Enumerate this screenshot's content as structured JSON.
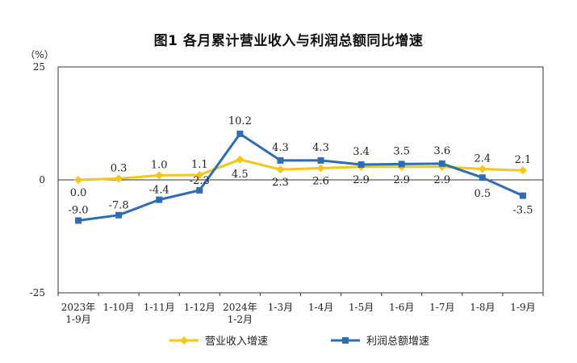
{
  "chart_data": {
    "type": "line",
    "title": "图1  各月累计营业收入与利润总额同比增速",
    "ylabel": "（%）",
    "ylim": [
      -25,
      25
    ],
    "yticks": [
      "25",
      "0",
      "-25"
    ],
    "categories": [
      [
        "2023年",
        "1-9月"
      ],
      [
        "1-10月"
      ],
      [
        "1-11月"
      ],
      [
        "1-12月"
      ],
      [
        "2024年",
        "1-2月"
      ],
      [
        "1-3月"
      ],
      [
        "1-4月"
      ],
      [
        "1-5月"
      ],
      [
        "1-6月"
      ],
      [
        "1-7月"
      ],
      [
        "1-8月"
      ],
      [
        "1-9月"
      ]
    ],
    "series": [
      {
        "name": "营业收入增速",
        "color": "#F5C518",
        "marker": "diamond",
        "values": [
          0.0,
          0.3,
          1.0,
          1.1,
          4.5,
          2.3,
          2.6,
          2.9,
          2.9,
          2.9,
          2.4,
          2.1
        ],
        "labels": [
          "0.0",
          "0.3",
          "1.0",
          "1.1",
          "4.5",
          "2.3",
          "2.6",
          "2.9",
          "2.9",
          "2.9",
          "2.4",
          "2.1"
        ]
      },
      {
        "name": "利润总额增速",
        "color": "#2E6DB4",
        "marker": "square",
        "values": [
          -9.0,
          -7.8,
          -4.4,
          -2.3,
          10.2,
          4.3,
          4.3,
          3.4,
          3.5,
          3.6,
          0.5,
          -3.5
        ],
        "labels": [
          "-9.0",
          "-7.8",
          "-4.4",
          "-2.3",
          "10.2",
          "4.3",
          "4.3",
          "3.4",
          "3.5",
          "3.6",
          "0.5",
          "-3.5"
        ]
      }
    ],
    "legend_position": "bottom"
  }
}
